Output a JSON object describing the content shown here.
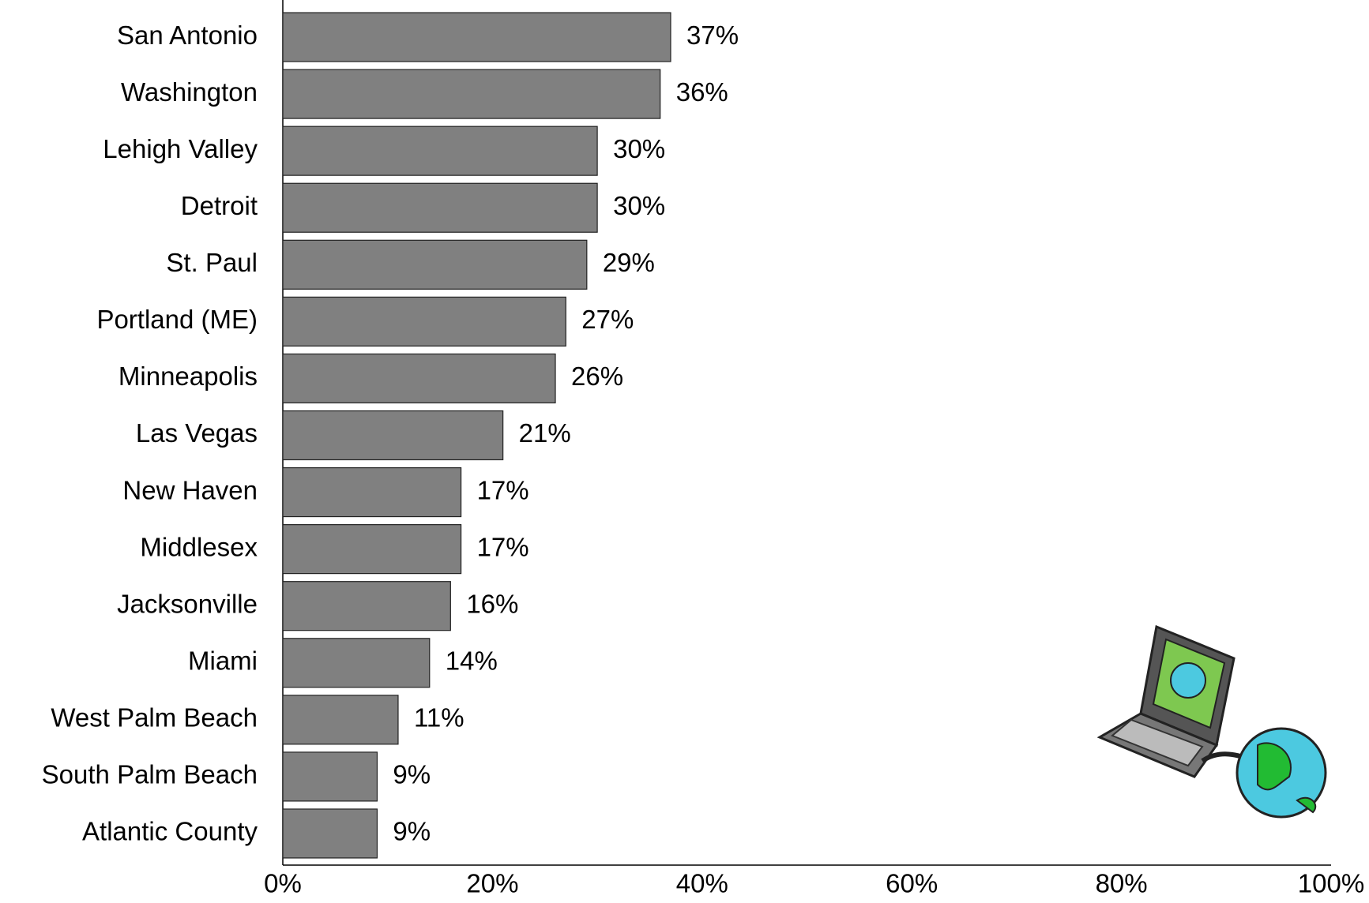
{
  "chart_data": {
    "type": "bar",
    "orientation": "horizontal",
    "categories": [
      "San Antonio",
      "Washington",
      "Lehigh Valley",
      "Detroit",
      "St. Paul",
      "Portland (ME)",
      "Minneapolis",
      "Las Vegas",
      "New Haven",
      "Middlesex",
      "Jacksonville",
      "Miami",
      "West Palm Beach",
      "South Palm Beach",
      "Atlantic County"
    ],
    "values": [
      37,
      36,
      30,
      30,
      29,
      27,
      26,
      21,
      17,
      17,
      16,
      14,
      11,
      9,
      9
    ],
    "value_labels": [
      "37%",
      "36%",
      "30%",
      "30%",
      "29%",
      "27%",
      "26%",
      "21%",
      "17%",
      "17%",
      "16%",
      "14%",
      "11%",
      "9%",
      "9%"
    ],
    "color": "#808080",
    "xlim": [
      0,
      100
    ],
    "xticks": [
      {
        "value": 0,
        "label": "0%"
      },
      {
        "value": 20,
        "label": "20%"
      },
      {
        "value": 40,
        "label": "40%"
      },
      {
        "value": 60,
        "label": "60%"
      },
      {
        "value": 80,
        "label": "80%"
      },
      {
        "value": 100,
        "label": "100%"
      }
    ],
    "grid": false
  }
}
